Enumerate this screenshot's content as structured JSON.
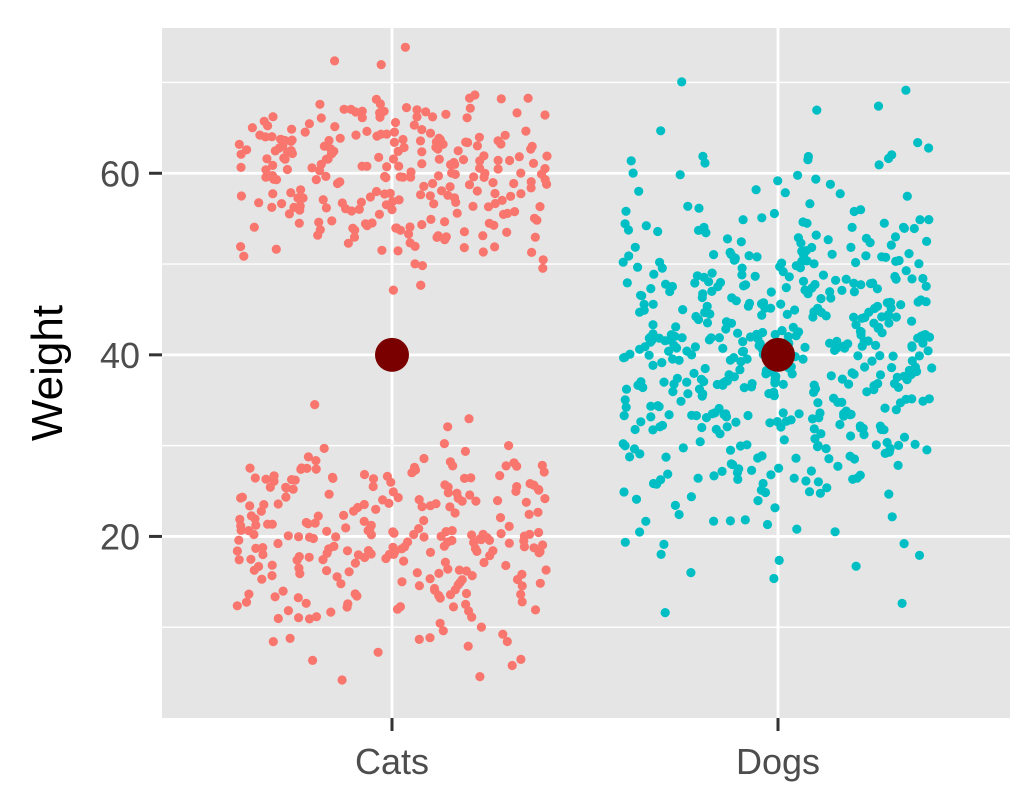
{
  "chart_data": {
    "type": "scatter",
    "ylabel": "Weight",
    "xlabel": "",
    "categories": [
      "Cats",
      "Dogs"
    ],
    "ylim": [
      0,
      76
    ],
    "y_ticks": [
      20,
      40,
      60
    ],
    "y_tick_labels": [
      "20",
      "40",
      "60"
    ],
    "grid": true,
    "panel_background": "#e5e5e5",
    "gridline_color": "#ffffff",
    "series": [
      {
        "category": "Cats",
        "color": "#f8766d",
        "description": "bimodal jittered points, two clusters",
        "clusters": [
          {
            "count": 260,
            "y_center": 60,
            "y_sd": 5
          },
          {
            "count": 260,
            "y_center": 20,
            "y_sd": 5.5
          }
        ]
      },
      {
        "category": "Dogs",
        "color": "#00bfc4",
        "description": "unimodal jittered points",
        "clusters": [
          {
            "count": 520,
            "y_center": 40,
            "y_sd": 10
          }
        ]
      }
    ],
    "means": [
      {
        "category": "Cats",
        "value": 40
      },
      {
        "category": "Dogs",
        "value": 40
      }
    ],
    "mean_color": "#7a0000",
    "legend": "none"
  }
}
